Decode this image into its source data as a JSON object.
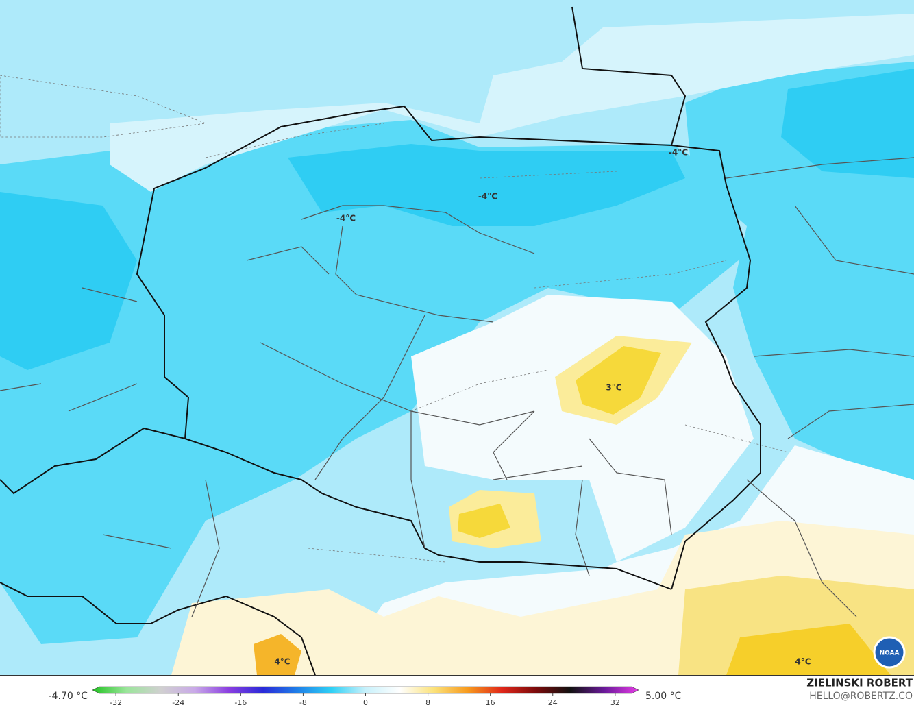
{
  "map": {
    "labels": [
      "-4°C",
      "-4°C",
      "-4°C",
      "3°C",
      "4°C",
      "4°C"
    ],
    "colorbar": {
      "min_label": "-4.70 °C",
      "max_label": "5.00 °C",
      "lim": [
        -35,
        35
      ],
      "ticks": [
        -32,
        -24,
        -16,
        -8,
        0,
        8,
        16,
        24,
        32
      ],
      "colors": [
        "#22c322",
        "#9be59b",
        "#d0d0d0",
        "#c9a9e8",
        "#8a3ee0",
        "#2a2ad8",
        "#1f7fe8",
        "#2fd0f5",
        "#c8f1fb",
        "#ffffff",
        "#fbe27a",
        "#f79a1e",
        "#e0261a",
        "#7a0b0b",
        "#111111",
        "#6a1a9a",
        "#e63ce6"
      ]
    },
    "credit": {
      "name": "ZIELINSKI ROBERT",
      "email": "HELLO@ROBERTZ.CO"
    },
    "logo": "NOAA"
  }
}
